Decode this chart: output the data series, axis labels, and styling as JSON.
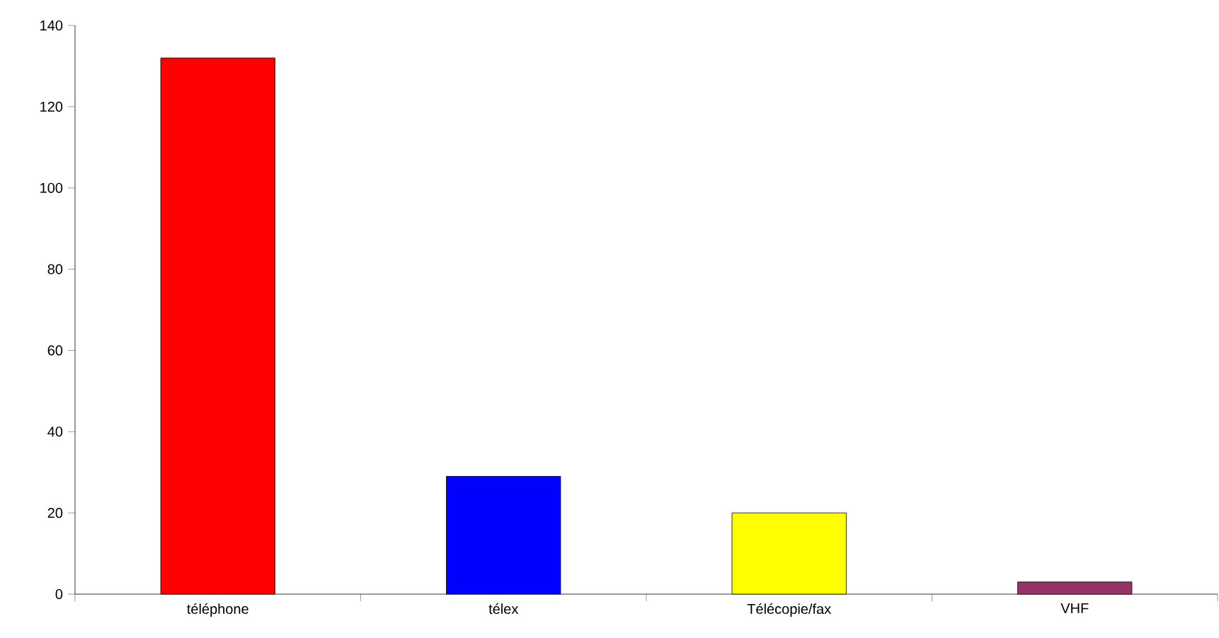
{
  "chart_data": {
    "type": "bar",
    "categories": [
      "téléphone",
      "télex",
      "Télécopie/fax",
      "VHF"
    ],
    "values": [
      132,
      29,
      20,
      3
    ],
    "colors": [
      "#ff0000",
      "#0000ff",
      "#ffff00",
      "#993366"
    ],
    "ylim": [
      0,
      140
    ],
    "yticks": [
      0,
      20,
      40,
      60,
      80,
      100,
      120,
      140
    ],
    "grid": false
  }
}
